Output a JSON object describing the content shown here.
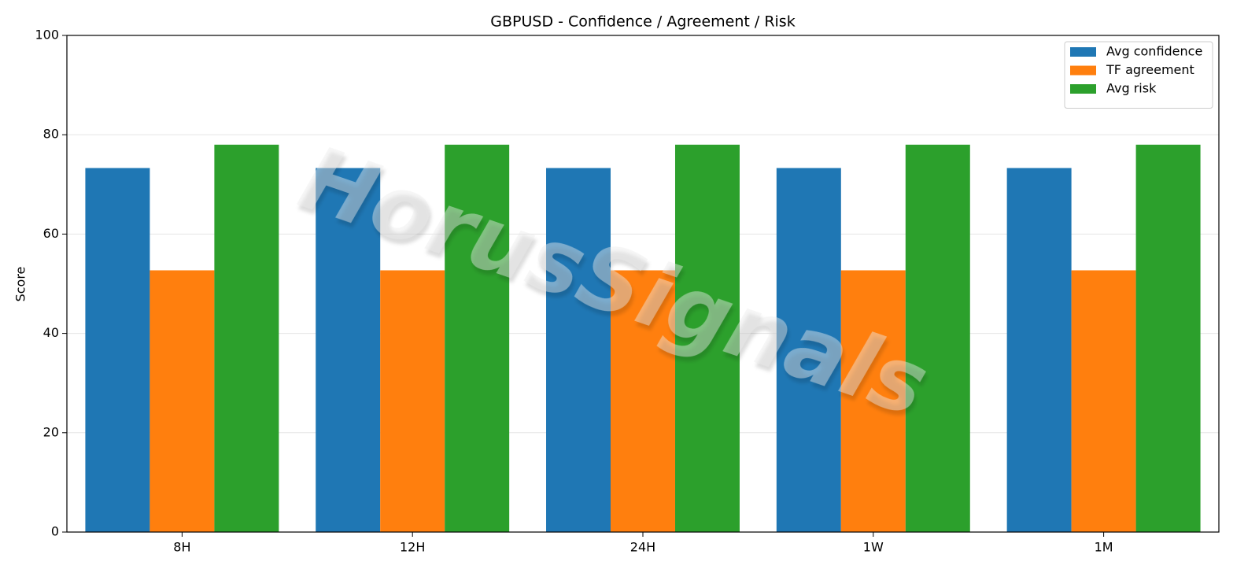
{
  "chart_data": {
    "type": "bar",
    "title": "GBPUSD - Confidence / Agreement / Risk",
    "y_label": "Score",
    "watermark": "HorusSignals",
    "categories": [
      "8H",
      "12H",
      "24H",
      "1W",
      "1M"
    ],
    "series": [
      {
        "name": "Avg confidence",
        "color": "#1f77b4",
        "values": [
          73.3,
          73.3,
          73.3,
          73.3,
          73.3
        ]
      },
      {
        "name": "TF agreement",
        "color": "#ff7f0e",
        "values": [
          52.7,
          52.7,
          52.7,
          52.7,
          52.7
        ]
      },
      {
        "name": "Avg risk",
        "color": "#2ca02c",
        "values": [
          78,
          78,
          78,
          78,
          78
        ]
      }
    ],
    "ylim": [
      0,
      100
    ],
    "yticks": [
      0,
      20,
      40,
      60,
      80,
      100
    ],
    "grid": true,
    "legend": "upper right"
  }
}
